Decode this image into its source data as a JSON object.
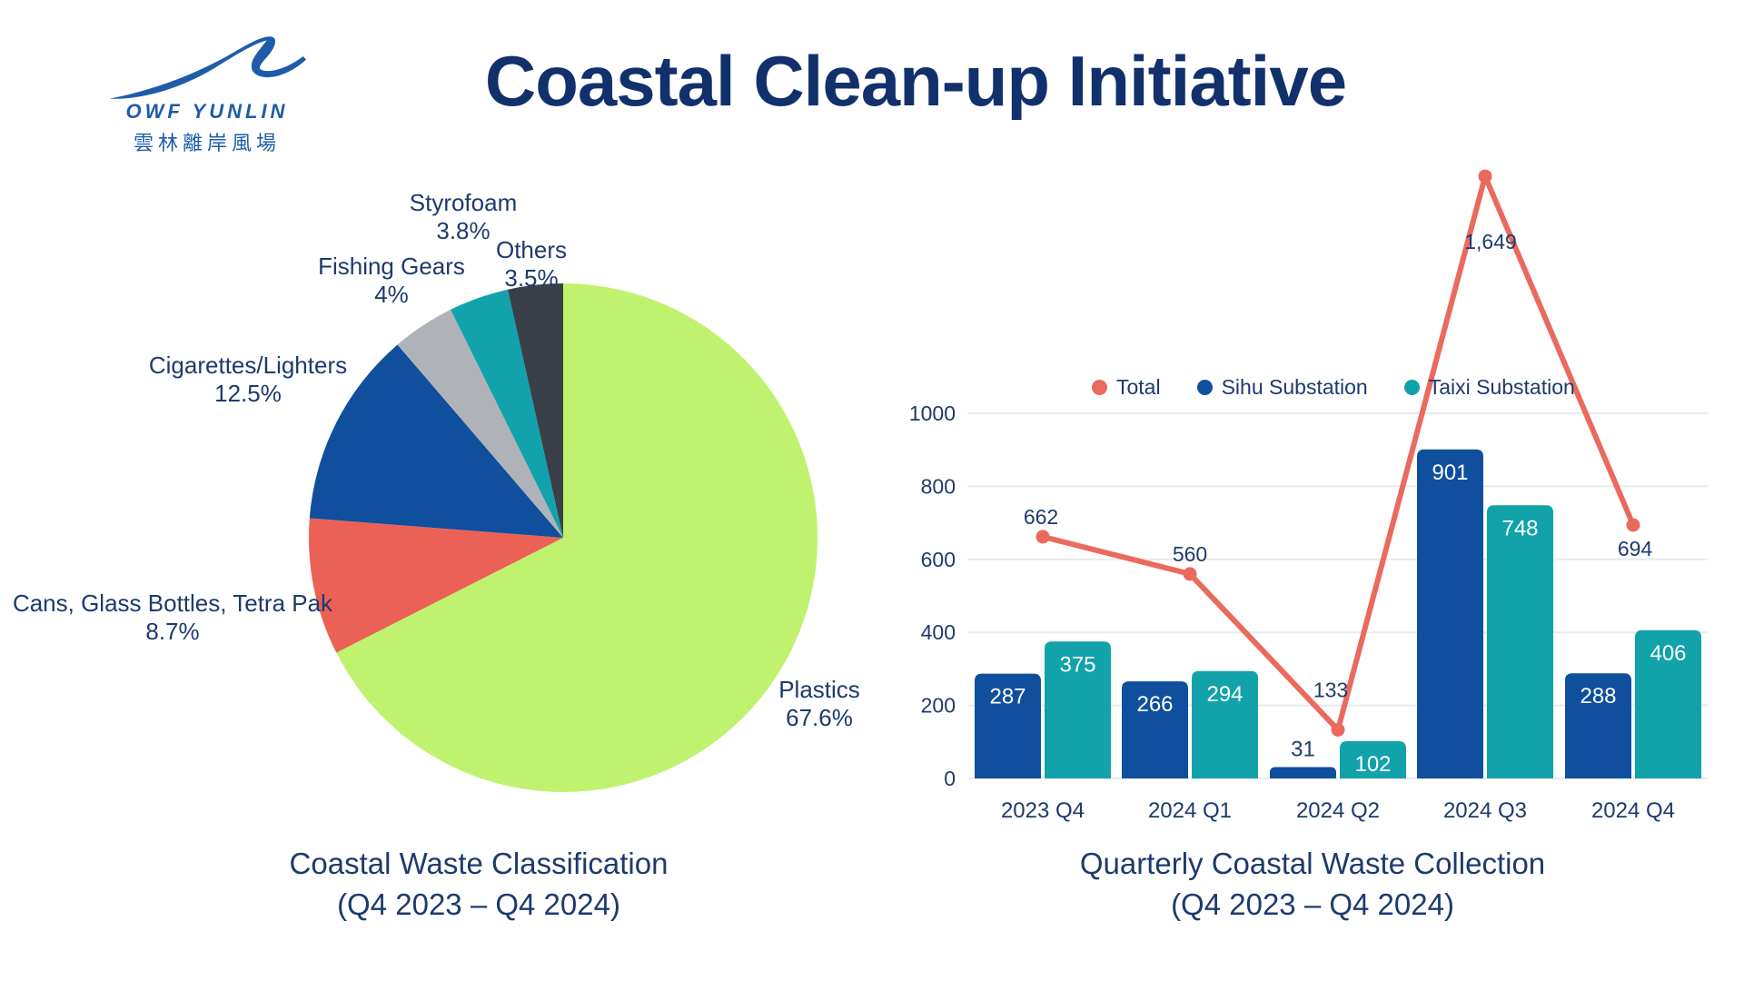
{
  "logo": {
    "name": "OWF YUNLIN",
    "chinese": "雲林離岸風場",
    "color": "#1E5CA9"
  },
  "title": "Coastal Clean-up Initiative",
  "colors": {
    "navy_text": "#1D3A6E",
    "title_navy": "#12306B",
    "gridline": "#E8EAEE"
  },
  "chart_data": [
    {
      "type": "pie",
      "title": "Coastal Waste Classification",
      "subtitle": "(Q4 2023 – Q4 2024)",
      "slices": [
        {
          "label": "Plastics",
          "value": 67.6,
          "pct_label": "67.6%",
          "color": "#BFF26E"
        },
        {
          "label": "Cans, Glass Bottles, Tetra Pak",
          "value": 8.7,
          "pct_label": "8.7%",
          "color": "#EC6156"
        },
        {
          "label": "Cigarettes/Lighters",
          "value": 12.5,
          "pct_label": "12.5%",
          "color": "#0F4F9D"
        },
        {
          "label": "Fishing Gears",
          "value": 4.0,
          "pct_label": "4%",
          "color": "#AFB3B9"
        },
        {
          "label": "Styrofoam",
          "value": 3.8,
          "pct_label": "3.8%",
          "color": "#12A2AC"
        },
        {
          "label": "Others",
          "value": 3.5,
          "pct_label": "3.5%",
          "color": "#394049"
        }
      ]
    },
    {
      "type": "bar+line",
      "title": "Quarterly Coastal Waste Collection",
      "subtitle": "(Q4 2023 – Q4 2024)",
      "categories": [
        "2023 Q4",
        "2024 Q1",
        "2024 Q2",
        "2024 Q3",
        "2024 Q4"
      ],
      "ylim": [
        0,
        1000
      ],
      "yticks": [
        0,
        200,
        400,
        600,
        800,
        1000
      ],
      "legend_position": "top",
      "grid": true,
      "series": [
        {
          "name": "Total",
          "type": "line",
          "color": "#EA6A5E",
          "values": [
            662,
            560,
            133,
            1649,
            694
          ],
          "labels": [
            "662",
            "560",
            "133",
            "1,649",
            "694"
          ]
        },
        {
          "name": "Sihu Substation",
          "type": "bar",
          "color": "#0F4F9D",
          "values": [
            287,
            266,
            31,
            901,
            288
          ],
          "labels": [
            "287",
            "266",
            "31",
            "901",
            "288"
          ]
        },
        {
          "name": "Taixi Substation",
          "type": "bar",
          "color": "#12A2A9",
          "values": [
            375,
            294,
            102,
            748,
            406
          ],
          "labels": [
            "375",
            "294",
            "102",
            "748",
            "406"
          ]
        }
      ]
    }
  ]
}
